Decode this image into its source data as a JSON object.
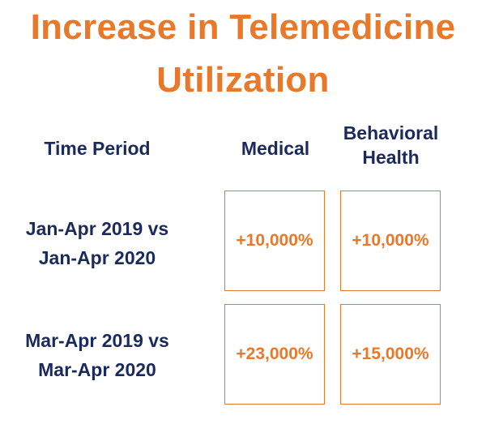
{
  "chart_data": {
    "type": "table",
    "title": "Increase in Telemedicine Utilization",
    "title_lines": [
      "Increase in Telemedicine",
      "Utilization"
    ],
    "columns": [
      "Time Period",
      "Medical",
      "Behavioral Health"
    ],
    "column_lines": {
      "period": [
        "Time Period"
      ],
      "medical": [
        "Medical"
      ],
      "behavioral": [
        "Behavioral",
        "Health"
      ]
    },
    "rows": [
      {
        "period": "Jan-Apr 2019 vs Jan-Apr 2020",
        "period_lines": [
          "Jan-Apr 2019 vs",
          "Jan-Apr 2020"
        ],
        "medical": "+10,000%",
        "behavioral": "+10,000%",
        "medical_value": 10000,
        "behavioral_value": 10000
      },
      {
        "period": "Mar-Apr 2019 vs Mar-Apr 2020",
        "period_lines": [
          "Mar-Apr 2019 vs",
          "Mar-Apr 2020"
        ],
        "medical": "+23,000%",
        "behavioral": "+15,000%",
        "medical_value": 23000,
        "behavioral_value": 15000
      }
    ],
    "colors": {
      "accent": "#e8782a",
      "header_text": "#1b2a5c",
      "background": "#ffffff"
    }
  }
}
